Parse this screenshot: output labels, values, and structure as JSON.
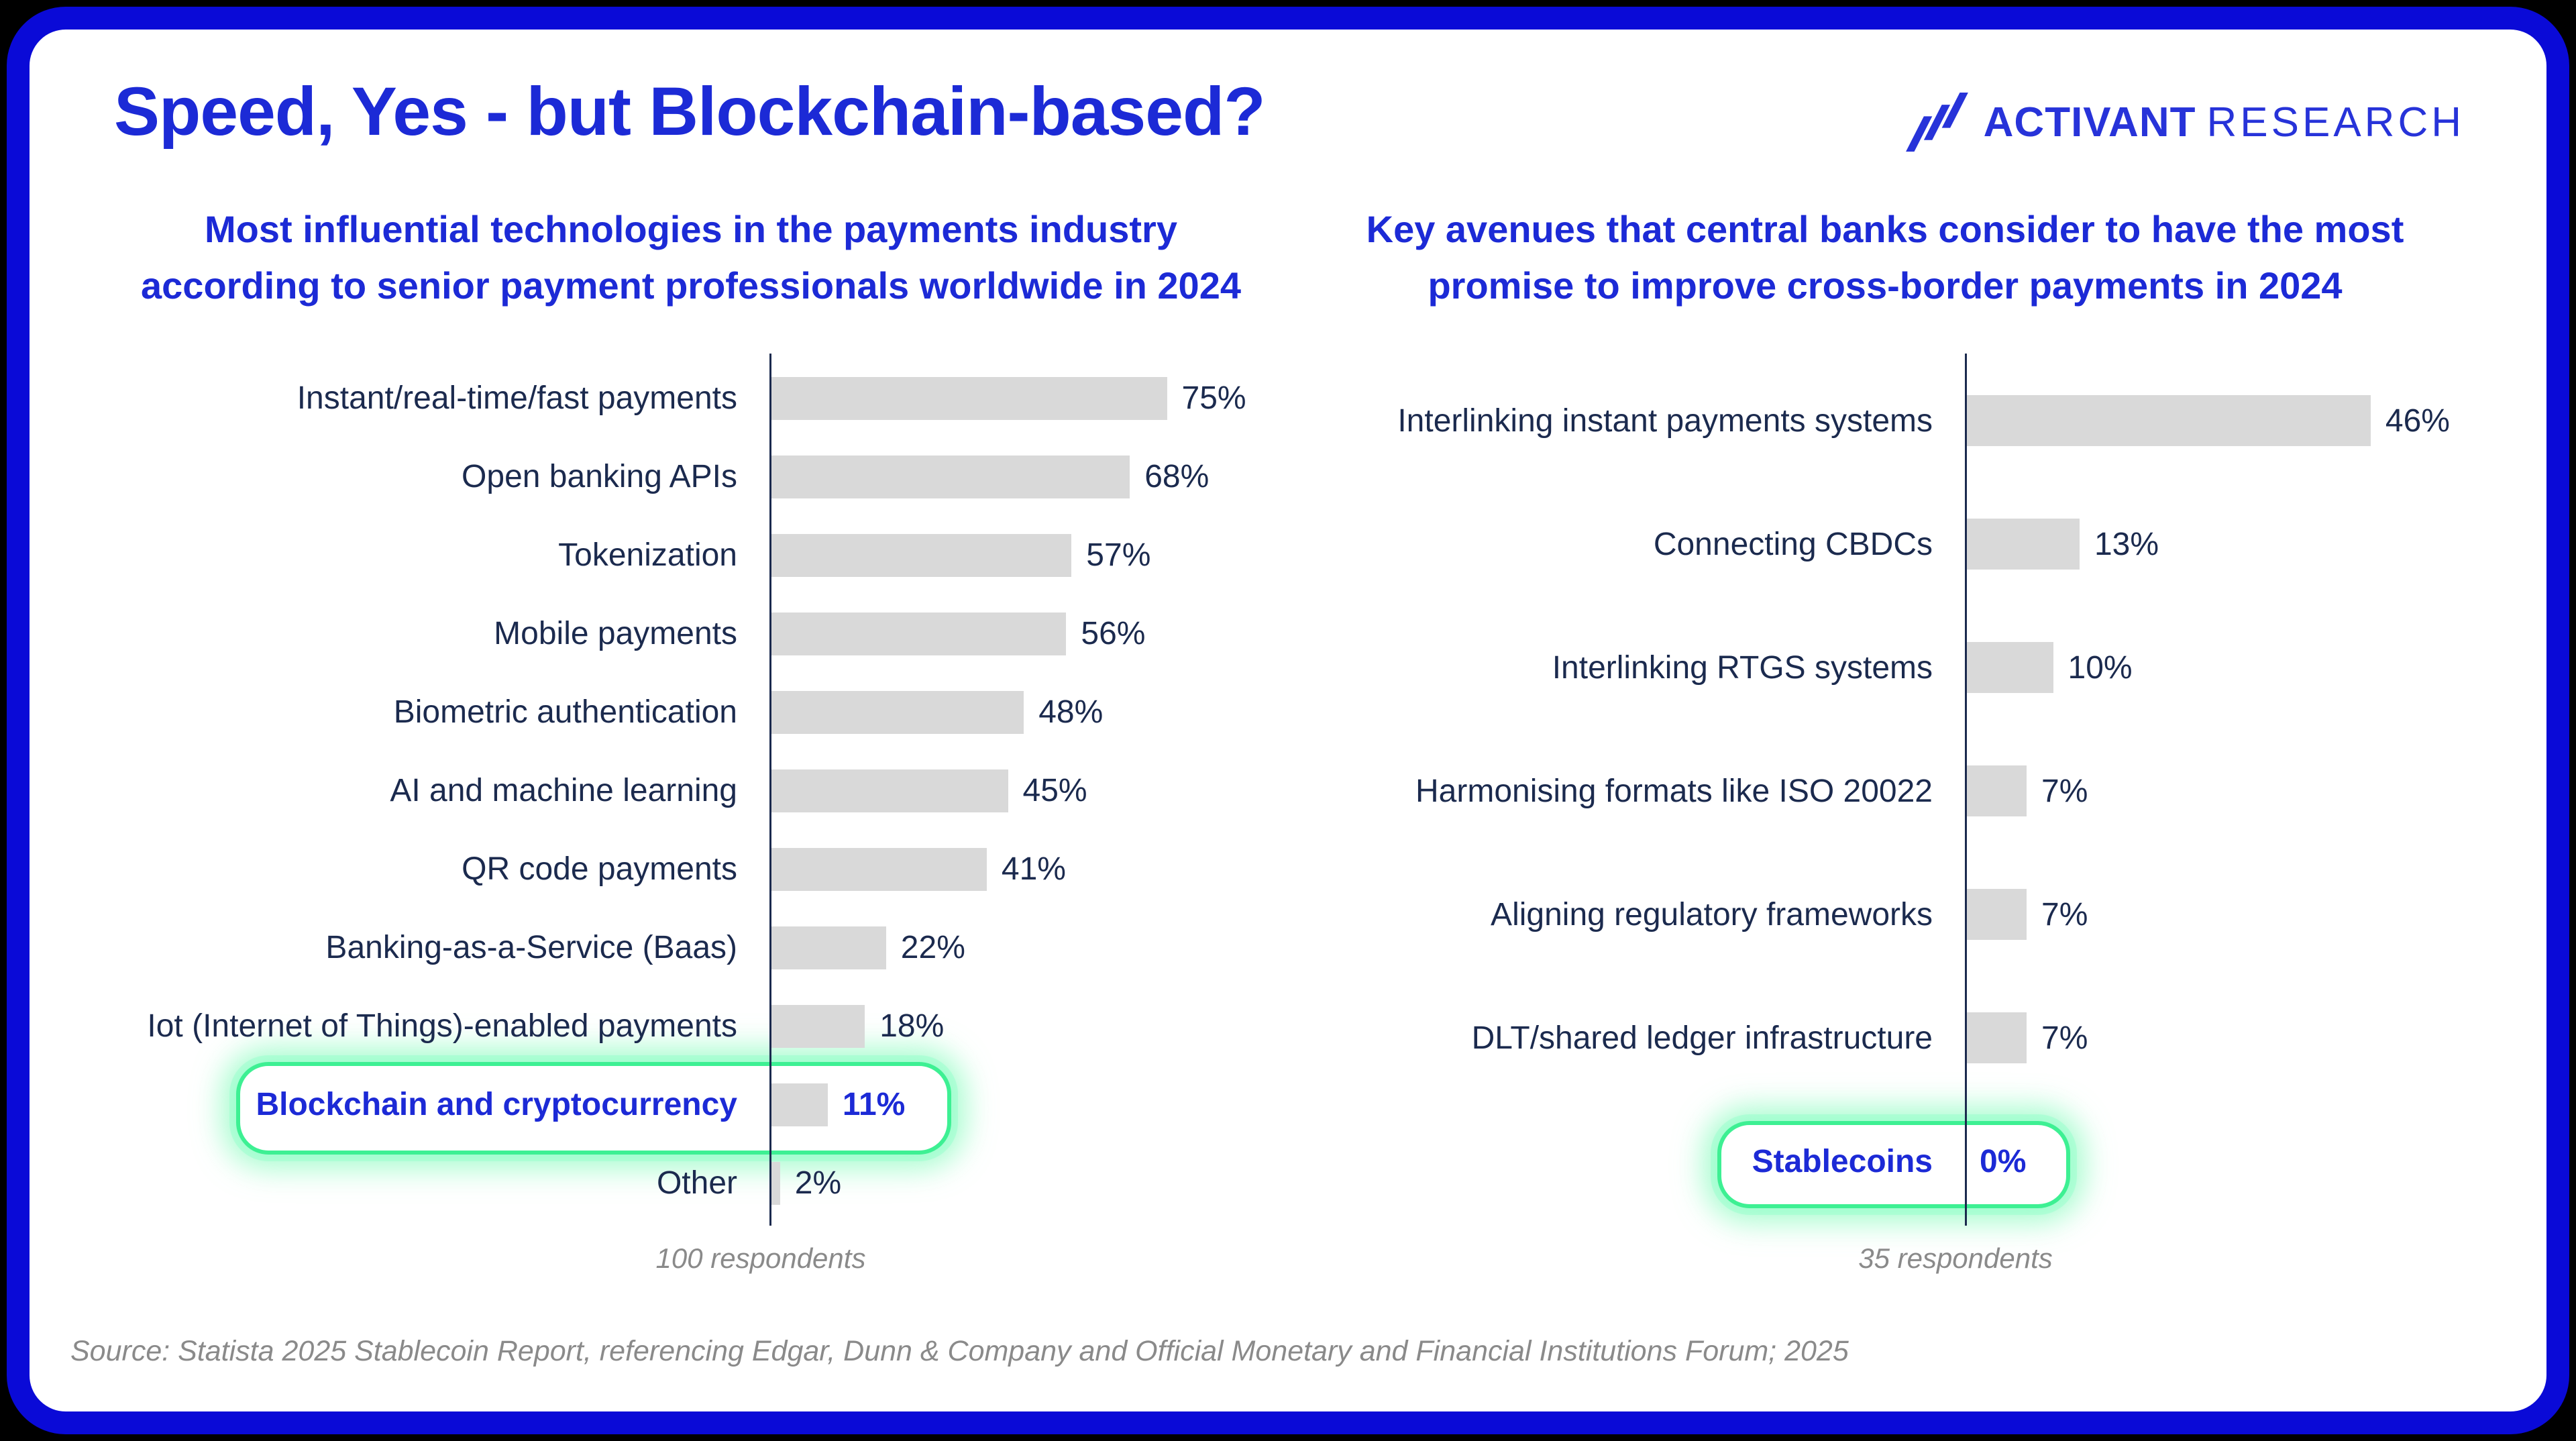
{
  "page": {
    "title": "Speed, Yes - but Blockchain-based?",
    "logo": {
      "brand_strong": "ACTIVANT",
      "brand_light": "RESEARCH"
    },
    "source": "Source: Statista 2025 Stablecoin Report, referencing Edgar, Dunn & Company and Official Monetary and Financial Institutions Forum; 2025"
  },
  "colors": {
    "accent": "#1c2ad6",
    "logo_blue": "#2733d9",
    "navy": "#1b2a4e",
    "bar_gray": "#d9d9d9",
    "highlight_green": "#3df093",
    "frame_blue": "#0a0ad7",
    "footnote_gray": "#8a8a8a"
  },
  "chart_data": [
    {
      "type": "bar",
      "orientation": "horizontal",
      "title": "Most influential technologies in the payments industry according to senior payment professionals worldwide in 2024",
      "title_line1": "Most influential technologies in the payments industry",
      "title_line2": "according to senior payment professionals worldwide in 2024",
      "categories": [
        "Instant/real-time/fast payments",
        "Open banking APIs",
        "Tokenization",
        "Mobile payments",
        "Biometric authentication",
        "AI and machine learning",
        "QR code payments",
        "Banking-as-a-Service (Baas)",
        "Iot (Internet of Things)-enabled payments",
        "Blockchain and cryptocurrency",
        "Other"
      ],
      "values": [
        75,
        68,
        57,
        56,
        48,
        45,
        41,
        22,
        18,
        11,
        2
      ],
      "value_labels": [
        "75%",
        "68%",
        "57%",
        "56%",
        "48%",
        "45%",
        "41%",
        "22%",
        "18%",
        "11%",
        "2%"
      ],
      "unit": "%",
      "highlight_index": 9,
      "highlighted_category": "Blockchain and cryptocurrency",
      "footnote": "100 respondents",
      "axis": "single vertical baseline at 0, no gridlines, no x-axis ticks",
      "legend": "none"
    },
    {
      "type": "bar",
      "orientation": "horizontal",
      "title": "Key avenues that central banks consider to have the most promise to improve cross-border payments in 2024",
      "title_line1": "Key avenues that central banks consider to have the most",
      "title_line2": "promise to improve cross-border payments in 2024",
      "categories": [
        "Interlinking instant payments systems",
        "Connecting CBDCs",
        "Interlinking RTGS systems",
        "Harmonising formats like ISO 20022",
        "Aligning regulatory frameworks",
        "DLT/shared ledger infrastructure",
        "Stablecoins"
      ],
      "values": [
        46,
        13,
        10,
        7,
        7,
        7,
        0
      ],
      "value_labels": [
        "46%",
        "13%",
        "10%",
        "7%",
        "7%",
        "7%",
        "0%"
      ],
      "unit": "%",
      "highlight_index": 6,
      "highlighted_category": "Stablecoins",
      "footnote": "35 respondents",
      "axis": "single vertical baseline at 0, no gridlines, no x-axis ticks",
      "legend": "none"
    }
  ]
}
